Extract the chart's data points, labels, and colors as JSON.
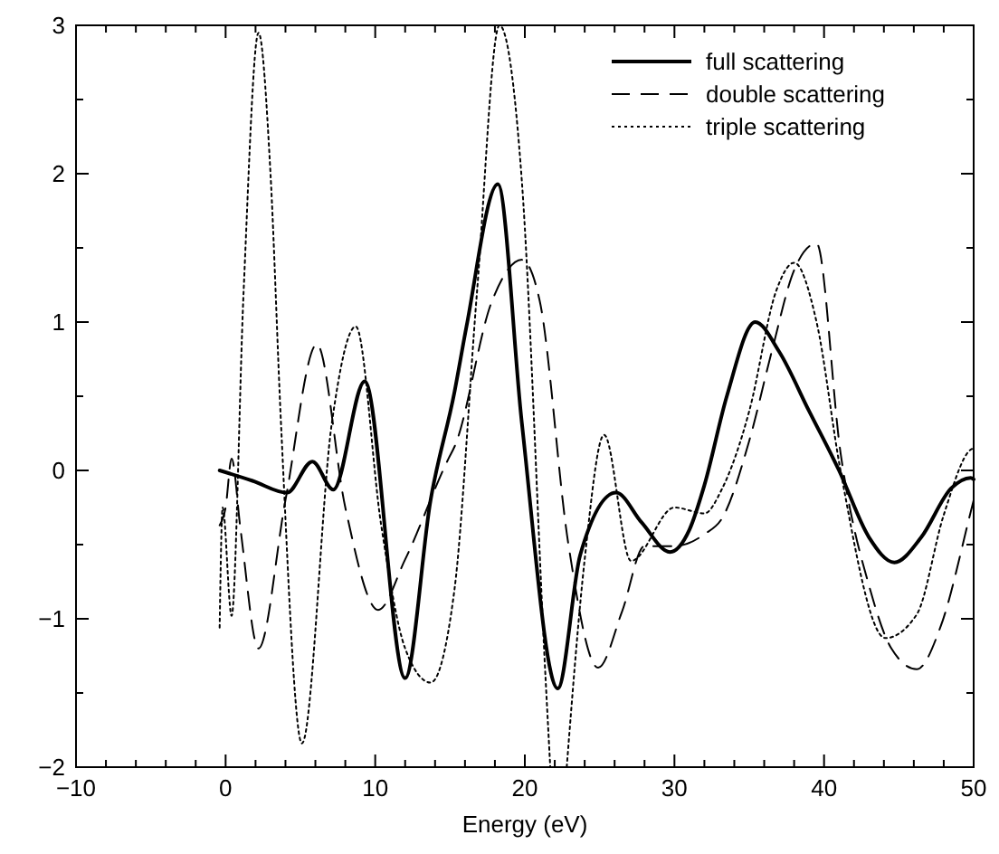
{
  "chart_data": {
    "type": "line",
    "xlabel": "Energy (eV)",
    "xlim": [
      -10,
      50
    ],
    "ylim": [
      -2,
      3
    ],
    "xticks": [
      -10,
      {
        "value": -8,
        "label": null
      },
      {
        "value": -6,
        "label": null
      },
      {
        "value": -4,
        "label": null
      },
      {
        "value": -2,
        "label": null
      },
      0,
      {
        "value": 2,
        "label": null
      },
      {
        "value": 4,
        "label": null
      },
      {
        "value": 6,
        "label": null
      },
      {
        "value": 8,
        "label": null
      },
      10,
      {
        "value": 12,
        "label": null
      },
      {
        "value": 14,
        "label": null
      },
      {
        "value": 16,
        "label": null
      },
      {
        "value": 18,
        "label": null
      },
      20,
      {
        "value": 22,
        "label": null
      },
      {
        "value": 24,
        "label": null
      },
      {
        "value": 26,
        "label": null
      },
      {
        "value": 28,
        "label": null
      },
      30,
      {
        "value": 32,
        "label": null
      },
      {
        "value": 34,
        "label": null
      },
      {
        "value": 36,
        "label": null
      },
      {
        "value": 38,
        "label": null
      },
      40,
      {
        "value": 42,
        "label": null
      },
      {
        "value": 44,
        "label": null
      },
      {
        "value": 46,
        "label": null
      },
      {
        "value": 48,
        "label": null
      },
      50
    ],
    "yticks": [
      -2,
      {
        "value": -1.5,
        "label": null
      },
      -1,
      {
        "value": -0.5,
        "label": null
      },
      0,
      {
        "value": 0.5,
        "label": null
      },
      1,
      {
        "value": 1.5,
        "label": null
      },
      2,
      {
        "value": 2.5,
        "label": null
      },
      3
    ],
    "legend": "top right",
    "grid": false,
    "marker": "none",
    "series": [
      {
        "name": "full scattering",
        "color": "#000000",
        "line_style": "solid",
        "x": [
          -0.4,
          1.8,
          4.1,
          5.8,
          7.2,
          9.3,
          12.0,
          13.7,
          15.3,
          16.1,
          18.2,
          19.8,
          22.2,
          23.7,
          26.1,
          27.8,
          29.7,
          31.0,
          32.0,
          33.5,
          35.4,
          37.0,
          39.0,
          41.0,
          43.0,
          44.7,
          46.5,
          48.5,
          49.8,
          50
        ],
        "values": [
          0.0,
          -0.07,
          -0.15,
          0.06,
          -0.13,
          0.6,
          -1.4,
          -0.2,
          0.53,
          0.97,
          1.93,
          0.32,
          -1.47,
          -0.57,
          -0.15,
          -0.35,
          -0.55,
          -0.4,
          -0.1,
          0.5,
          1.0,
          0.8,
          0.4,
          0.0,
          -0.45,
          -0.62,
          -0.45,
          -0.12,
          -0.05,
          -0.06
        ]
      },
      {
        "name": "double scattering",
        "color": "#000000",
        "line_style": "dashed",
        "x": [
          -0.4,
          0,
          0.4,
          1.0,
          2.2,
          4.0,
          6.1,
          8.0,
          10.2,
          12.0,
          14.9,
          15.3,
          17.8,
          19.8,
          21.0,
          22.9,
          24.9,
          26.5,
          28.0,
          30.0,
          32.0,
          33.2,
          35.0,
          36.5,
          38.0,
          39.5,
          41.1,
          43.1,
          44.5,
          46.2,
          47.8,
          49.8,
          50
        ],
        "values": [
          -0.37,
          -0.25,
          0.08,
          -0.4,
          -1.2,
          -0.2,
          0.85,
          -0.25,
          -0.94,
          -0.6,
          0.08,
          0.16,
          1.14,
          1.42,
          1.14,
          -0.49,
          -1.33,
          -0.95,
          -0.51,
          -0.51,
          -0.43,
          -0.32,
          0.2,
          0.8,
          1.35,
          1.53,
          0.12,
          -0.81,
          -1.2,
          -1.34,
          -1.05,
          -0.28,
          -0.2
        ]
      },
      {
        "name": "triple scattering",
        "color": "#000000",
        "line_style": "dotted",
        "x": [
          -0.4,
          -0.2,
          0.4,
          1.2,
          2.2,
          3.0,
          3.7,
          5.1,
          7.1,
          8.7,
          10.4,
          12.0,
          13.7,
          15.3,
          16.8,
          18.3,
          19.8,
          21.4,
          21.7,
          22.25,
          22.8,
          24.0,
          25.3,
          27.1,
          30.0,
          32.0,
          33.2,
          35.0,
          36.8,
          38.0,
          39.5,
          41.1,
          44.1,
          46.2,
          48.0,
          49.8,
          50
        ],
        "values": [
          -1.06,
          -0.25,
          -0.98,
          1.2,
          2.95,
          2.0,
          0.32,
          -1.84,
          0.32,
          0.97,
          -0.37,
          -1.2,
          -1.43,
          -0.8,
          1.2,
          3.0,
          1.95,
          -1.43,
          -2.0,
          null,
          -2.0,
          -0.6,
          0.24,
          -0.61,
          -0.25,
          -0.29,
          -0.12,
          0.4,
          1.21,
          1.4,
          1.0,
          0.0,
          -1.13,
          -0.97,
          -0.3,
          0.14,
          0.15
        ]
      }
    ]
  }
}
